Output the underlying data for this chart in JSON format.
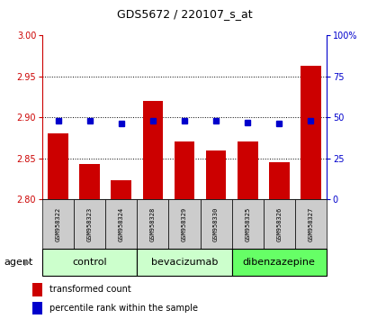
{
  "title": "GDS5672 / 220107_s_at",
  "samples": [
    "GSM958322",
    "GSM958323",
    "GSM958324",
    "GSM958328",
    "GSM958329",
    "GSM958330",
    "GSM958325",
    "GSM958326",
    "GSM958327"
  ],
  "bar_values": [
    2.88,
    2.843,
    2.823,
    2.92,
    2.87,
    2.86,
    2.87,
    2.845,
    2.963
  ],
  "percentile_values": [
    48,
    48,
    46,
    48,
    48,
    48,
    47,
    46,
    48
  ],
  "bar_bottom": 2.8,
  "ylim_left": [
    2.8,
    3.0
  ],
  "ylim_right": [
    0,
    100
  ],
  "yticks_left": [
    2.8,
    2.85,
    2.9,
    2.95,
    3.0
  ],
  "yticks_right": [
    0,
    25,
    50,
    75,
    100
  ],
  "ytick_labels_right": [
    "0",
    "25",
    "50",
    "75",
    "100%"
  ],
  "bar_color": "#cc0000",
  "dot_color": "#0000cc",
  "groups": [
    {
      "label": "control",
      "indices": [
        0,
        1,
        2
      ],
      "color": "#ccffcc"
    },
    {
      "label": "bevacizumab",
      "indices": [
        3,
        4,
        5
      ],
      "color": "#ccffcc"
    },
    {
      "label": "dibenzazepine",
      "indices": [
        6,
        7,
        8
      ],
      "color": "#66ff66"
    }
  ],
  "agent_label": "agent",
  "legend_bar_label": "transformed count",
  "legend_dot_label": "percentile rank within the sample",
  "grid_color": "#000000",
  "background_color": "#ffffff",
  "tick_label_color_left": "#cc0000",
  "tick_label_color_right": "#0000cc",
  "bar_width": 0.65,
  "sample_bg_color": "#cccccc",
  "title_fontsize": 9,
  "axis_fontsize": 7,
  "sample_fontsize": 5,
  "group_fontsize": 8,
  "legend_fontsize": 7
}
